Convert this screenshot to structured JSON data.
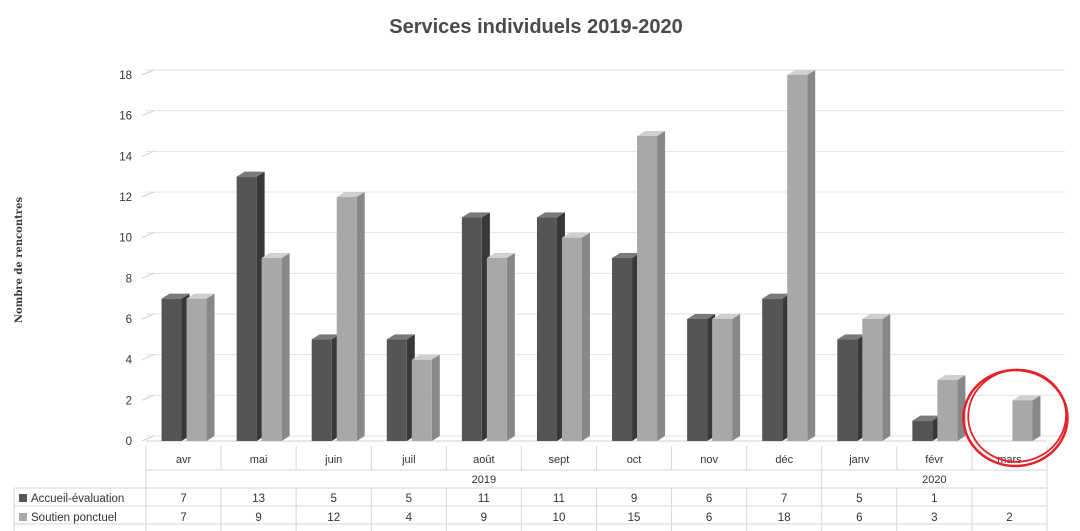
{
  "chart_data": {
    "type": "bar",
    "title": "Services individuels 2019-2020",
    "ylabel": "Nombre de rencontres",
    "xlabel": "",
    "ylim": [
      0,
      18
    ],
    "yticks": [
      "0",
      "2",
      "4",
      "6",
      "8",
      "10",
      "12",
      "14",
      "16",
      "18"
    ],
    "grid": true,
    "style": "3d-column",
    "categories": [
      "avr",
      "mai",
      "juin",
      "juil",
      "août",
      "sept",
      "oct",
      "nov",
      "déc",
      "janv",
      "févr",
      "mars"
    ],
    "year_groups": [
      {
        "label": "2019",
        "span": 9
      },
      {
        "label": "2020",
        "span": 3
      }
    ],
    "series": [
      {
        "name": "Accueil-évaluation",
        "color": "#555555",
        "values": [
          7,
          13,
          5,
          5,
          11,
          11,
          9,
          6,
          7,
          5,
          1,
          null
        ],
        "table_values": [
          "7",
          "13",
          "5",
          "5",
          "11",
          "11",
          "9",
          "6",
          "7",
          "5",
          "1",
          ""
        ]
      },
      {
        "name": "Soutien ponctuel",
        "color": "#a8a8a8",
        "values": [
          7,
          9,
          12,
          4,
          9,
          10,
          15,
          6,
          18,
          6,
          3,
          2
        ],
        "table_values": [
          "7",
          "9",
          "12",
          "4",
          "9",
          "10",
          "15",
          "6",
          "18",
          "6",
          "3",
          "2"
        ]
      }
    ],
    "annotation": {
      "type": "circle",
      "color": "#e8202a",
      "category": "mars"
    }
  }
}
